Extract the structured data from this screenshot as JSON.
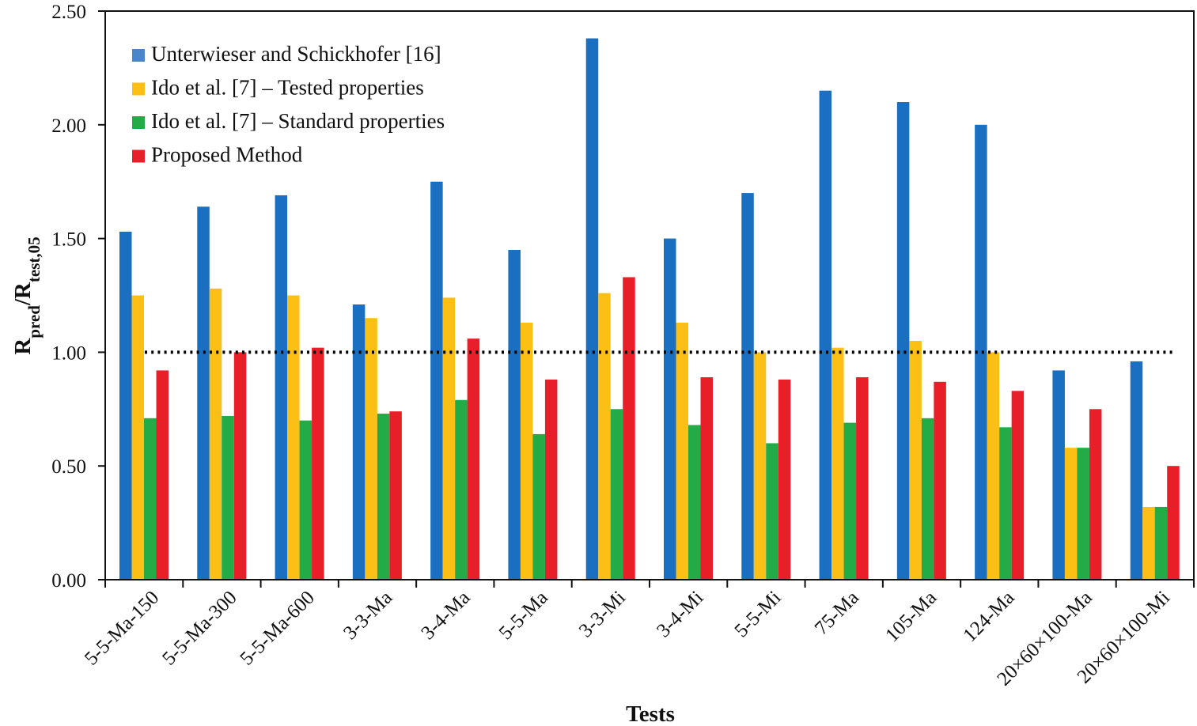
{
  "chart_data": {
    "type": "bar",
    "title": "",
    "xlabel": "Tests",
    "ylabel_main": "R",
    "ylabel_sub1": "pred",
    "ylabel_slash": "/R",
    "ylabel_sub2": "test,05",
    "ylim": [
      0,
      2.5
    ],
    "yticks": [
      0,
      0.5,
      1.0,
      1.5,
      2.0,
      2.5
    ],
    "ytick_labels": [
      "0.00",
      "0.50",
      "1.00",
      "1.50",
      "2.00",
      "2.50"
    ],
    "reference_line": 1.0,
    "legend_position": "top-left",
    "categories": [
      "5-5-Ma-150",
      "5-5-Ma-300",
      "5-5-Ma-600",
      "3-3-Ma",
      "3-4-Ma",
      "5-5-Ma",
      "3-3-Mi",
      "3-4-Mi",
      "5-5-Mi",
      "75-Ma",
      "105-Ma",
      "124-Ma",
      "20×60×100-Ma",
      "20×60×100-Mi"
    ],
    "series": [
      {
        "name": "Unterwieser and Schickhofer [16]",
        "color": "#1a6fc0",
        "legend_color": "#4a86c8",
        "values": [
          1.53,
          1.64,
          1.69,
          1.21,
          1.75,
          1.45,
          2.38,
          1.5,
          1.7,
          2.15,
          2.1,
          2.0,
          0.92,
          0.96
        ]
      },
      {
        "name": "Ido et al. [7] – Tested properties",
        "color": "#fcbf16",
        "legend_color": "#fcbf16",
        "values": [
          1.25,
          1.28,
          1.25,
          1.15,
          1.24,
          1.13,
          1.26,
          1.13,
          1.0,
          1.02,
          1.05,
          1.0,
          0.58,
          0.32
        ]
      },
      {
        "name": "Ido et al. [7] – Standard properties",
        "color": "#22ab46",
        "legend_color": "#22ab46",
        "values": [
          0.71,
          0.72,
          0.7,
          0.73,
          0.79,
          0.64,
          0.75,
          0.68,
          0.6,
          0.69,
          0.71,
          0.67,
          0.58,
          0.32
        ]
      },
      {
        "name": "Proposed Method",
        "color": "#e81f28",
        "legend_color": "#e81f28",
        "values": [
          0.92,
          1.0,
          1.02,
          0.74,
          1.06,
          0.88,
          1.33,
          0.89,
          0.88,
          0.89,
          0.87,
          0.83,
          0.75,
          0.5
        ]
      }
    ]
  }
}
